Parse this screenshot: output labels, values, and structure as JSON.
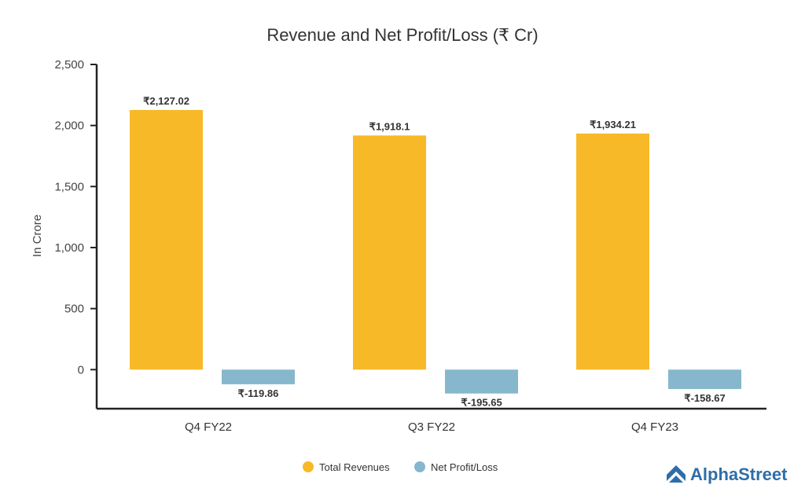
{
  "chart_data": {
    "type": "bar",
    "title": "Revenue and Net Profit/Loss (₹ Cr)",
    "xlabel": "",
    "ylabel": "In Crore",
    "ylim": [
      -320,
      2500
    ],
    "yticks": [
      0,
      500,
      1000,
      1500,
      2000,
      2500
    ],
    "ytick_labels": [
      "0",
      "500",
      "1,000",
      "1,500",
      "2,000",
      "2,500"
    ],
    "grid": false,
    "legend_position": "bottom-center",
    "categories": [
      "Q4 FY22",
      "Q3 FY22",
      "Q4 FY23"
    ],
    "series": [
      {
        "name": "Total Revenues",
        "color": "#f7b928",
        "values": [
          2127.02,
          1918.1,
          1934.21
        ],
        "labels": [
          "₹2,127.02",
          "₹1,918.1",
          "₹1,934.21"
        ]
      },
      {
        "name": "Net Profit/Loss",
        "color": "#86b7cc",
        "values": [
          -119.86,
          -195.65,
          -158.67
        ],
        "labels": [
          "₹-119.86",
          "₹-195.65",
          "₹-158.67"
        ]
      }
    ]
  },
  "brand": {
    "name": "AlphaStreet",
    "color": "#2e6ea8",
    "icon": "alphastreet-logo-icon"
  }
}
